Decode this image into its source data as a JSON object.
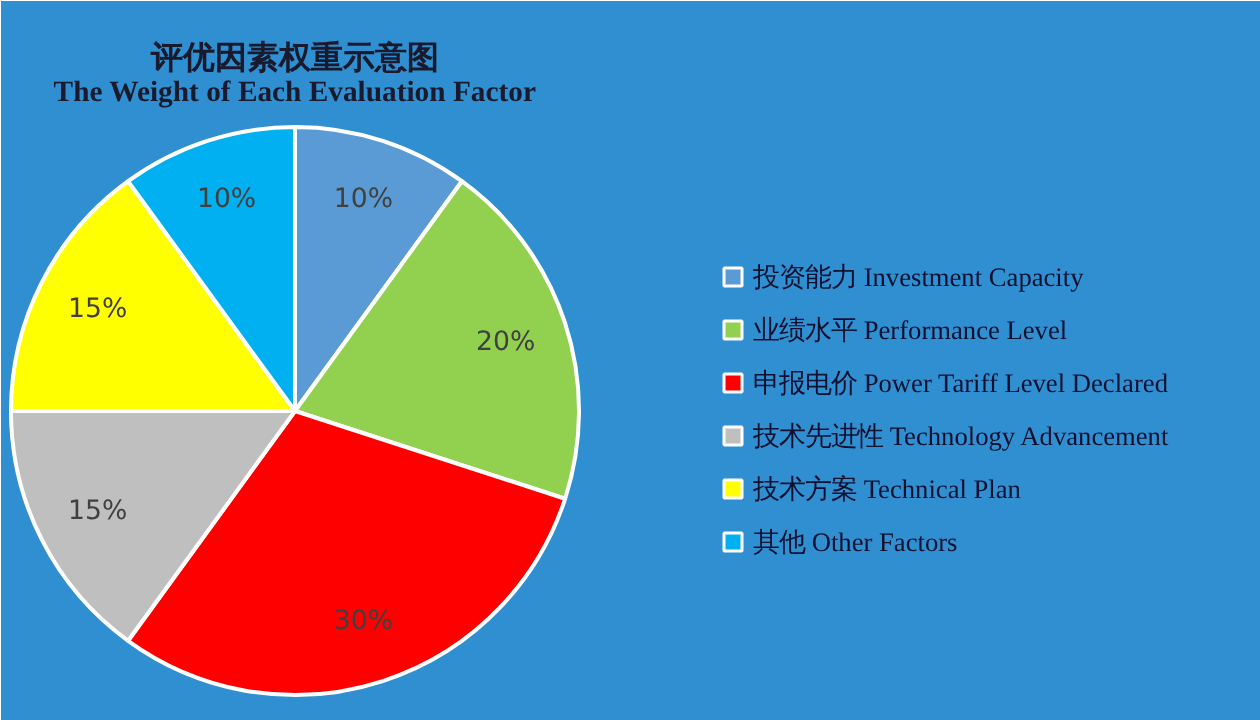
{
  "chart_data": {
    "type": "pie",
    "title": "评优因素权重示意图",
    "subtitle": "The Weight of Each Evaluation Factor",
    "categories": [
      "投资能力 Investment Capacity",
      "业绩水平 Performance Level",
      "申报电价 Power Tariff Level Declared",
      "技术先进性 Technology Advancement",
      "技术方案 Technical Plan",
      "其他 Other Factors"
    ],
    "values": [
      10,
      20,
      30,
      15,
      15,
      10
    ],
    "colors": [
      "#5b9bd5",
      "#92d050",
      "#ff0000",
      "#bfbfbf",
      "#ffff00",
      "#00b0f0"
    ],
    "value_labels": [
      "10%",
      "20%",
      "30%",
      "15%",
      "15%",
      "10%"
    ],
    "legend": "right"
  }
}
